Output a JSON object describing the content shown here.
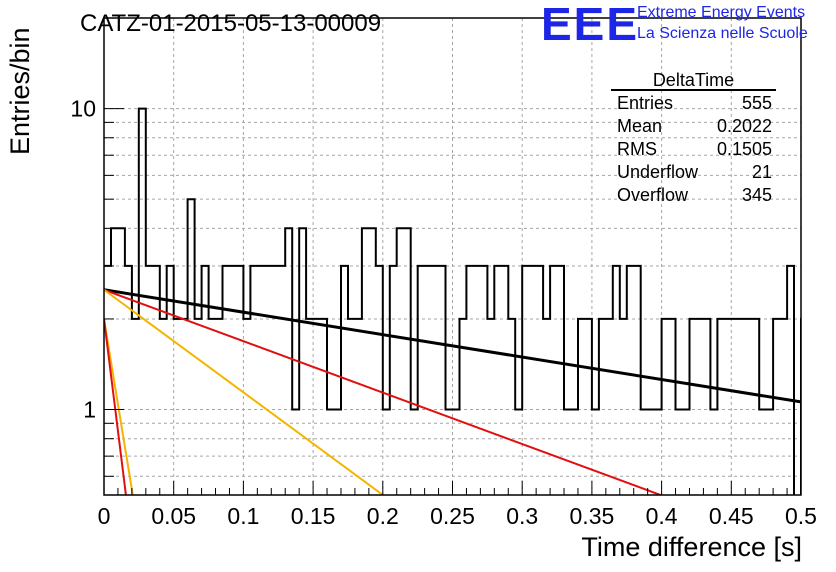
{
  "header": {
    "title": "CATZ-01-2015-05-13-00009",
    "logo_text": "EEE",
    "logo_line1": "Extreme Energy Events",
    "logo_line2": "La Scienza nelle Scuole",
    "logo_color": "#1d25e6"
  },
  "stats": {
    "title": "DeltaTime",
    "rows": [
      {
        "key": "Entries",
        "value": "555"
      },
      {
        "key": "Mean",
        "value": "0.2022"
      },
      {
        "key": "RMS",
        "value": "0.1505"
      },
      {
        "key": "Underflow",
        "value": "21"
      },
      {
        "key": "Overflow",
        "value": "345"
      }
    ]
  },
  "chart_data": {
    "type": "histogram",
    "xlabel": "Time difference [s]",
    "ylabel": "Entries/bin",
    "xlim": [
      0,
      0.5
    ],
    "ylim": [
      0.52,
      20
    ],
    "y_scale": "log",
    "grid": true,
    "x_ticks": [
      "0",
      "0.05",
      "0.1",
      "0.15",
      "0.2",
      "0.25",
      "0.3",
      "0.35",
      "0.4",
      "0.45",
      "0.5"
    ],
    "y_tick_labels": [
      {
        "value": 1,
        "label": "1"
      },
      {
        "value": 10,
        "label": "10"
      }
    ],
    "bin_width": 0.005,
    "counts": [
      3,
      4,
      4,
      3,
      2,
      10,
      3,
      3,
      2,
      3,
      2,
      2,
      5,
      2,
      3,
      2,
      2,
      3,
      3,
      3,
      2,
      3,
      3,
      3,
      3,
      3,
      4,
      1,
      4,
      2,
      2,
      2,
      1,
      1,
      3,
      2,
      2,
      4,
      4,
      3,
      1,
      3,
      4,
      4,
      1,
      3,
      3,
      3,
      3,
      1,
      1,
      2,
      3,
      3,
      3,
      2,
      3,
      3,
      2,
      1,
      3,
      3,
      3,
      2,
      3,
      3,
      1,
      1,
      2,
      2,
      1,
      2,
      2,
      3,
      2,
      3,
      3,
      1,
      1,
      1,
      2,
      2,
      1,
      1,
      2,
      2,
      2,
      1,
      2,
      2,
      2,
      2,
      2,
      2,
      1,
      1,
      2,
      2,
      3,
      0,
      2,
      1,
      2,
      2,
      1,
      4,
      1,
      2,
      2,
      2,
      1,
      0,
      1,
      1,
      4,
      2,
      3,
      2,
      1,
      1,
      2,
      1,
      1,
      1,
      1,
      0,
      1,
      2,
      1,
      2,
      2,
      1,
      2,
      2,
      2,
      2,
      3,
      0,
      2,
      1,
      1,
      1,
      2,
      2,
      1,
      2,
      3,
      3,
      4,
      3,
      2,
      2,
      1,
      1,
      4,
      2,
      4,
      2,
      1,
      3,
      4,
      2,
      1,
      1,
      1,
      1,
      3,
      2,
      3,
      2,
      1,
      1,
      4,
      4,
      2,
      1,
      3,
      3,
      4,
      2,
      1,
      1,
      1,
      2,
      2,
      1,
      1,
      2,
      2,
      0,
      1,
      1,
      1,
      2,
      0,
      2,
      1,
      1,
      2,
      1
    ],
    "fits": [
      {
        "color": "#000000",
        "x": [
          0,
          0.5
        ],
        "y": [
          2.5,
          1.06
        ]
      },
      {
        "color": "#e01010",
        "x": [
          0,
          0.405
        ],
        "y": [
          2.5,
          0.52
        ]
      },
      {
        "color": "#f4b400",
        "x": [
          0,
          0.203
        ],
        "y": [
          2.5,
          0.52
        ]
      },
      {
        "color": "#f4b400",
        "x": [
          0,
          0.021
        ],
        "y": [
          2.0,
          0.52
        ]
      },
      {
        "color": "#e01010",
        "x": [
          0,
          0.016
        ],
        "y": [
          2.0,
          0.52
        ]
      }
    ]
  }
}
